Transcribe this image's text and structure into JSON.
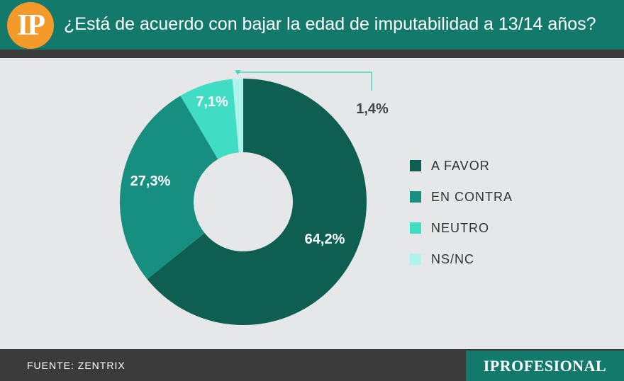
{
  "header": {
    "logo": "IP",
    "title": "¿Está de acuerdo con bajar la edad de imputabilidad a 13/14 años?"
  },
  "footer": {
    "source": "FUENTE: ZENTRIX",
    "brand": "IPROFESIONAL"
  },
  "colors": {
    "a_favor": "#0e5e51",
    "en_contra": "#178f80",
    "neutro": "#40dcc4",
    "nsnc": "#aef3ec",
    "header": "#137a6b",
    "logo": "#f39a2a"
  },
  "chart_data": {
    "type": "pie",
    "title": "¿Está de acuerdo con bajar la edad de imputabilidad a 13/14 años?",
    "donut": true,
    "slices": [
      {
        "name": "A FAVOR",
        "value": 64.2,
        "label": "64,2%",
        "color": "#0e5e51"
      },
      {
        "name": "EN CONTRA",
        "value": 27.3,
        "label": "27,3%",
        "color": "#178f80"
      },
      {
        "name": "NEUTRO",
        "value": 7.1,
        "label": "7,1%",
        "color": "#40dcc4"
      },
      {
        "name": "NS/NC",
        "value": 1.4,
        "label": "1,4%",
        "color": "#aef3ec"
      }
    ],
    "legend_position": "right"
  }
}
